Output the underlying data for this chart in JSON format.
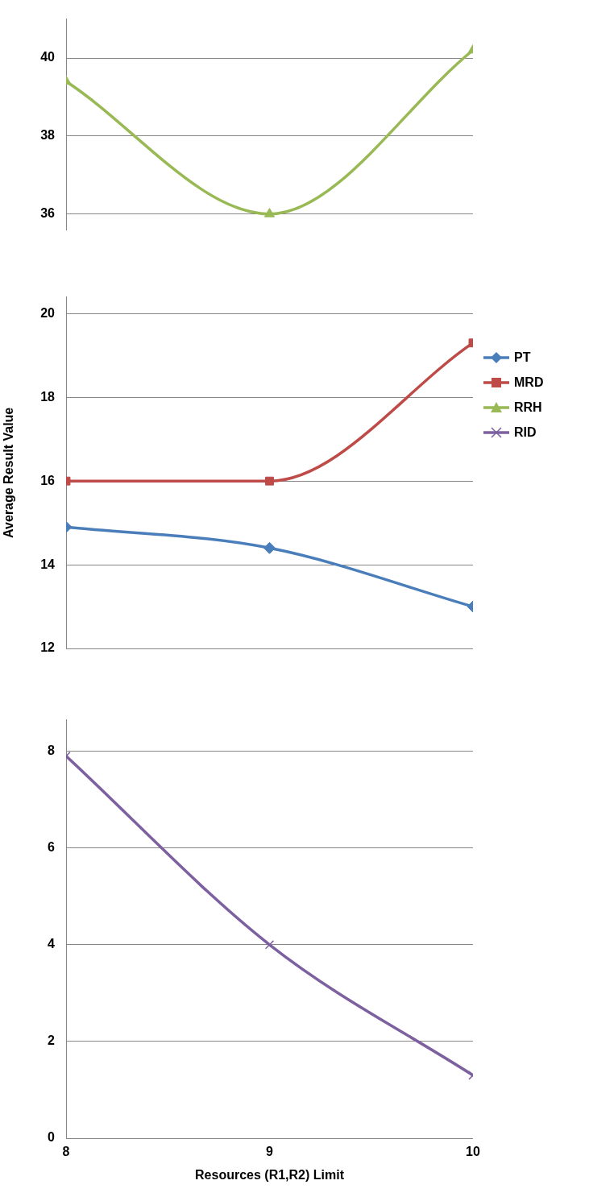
{
  "chart_data": [
    {
      "type": "line",
      "x": [
        8,
        9,
        10
      ],
      "xlim": [
        8,
        10
      ],
      "xticks": [
        8,
        9,
        10
      ],
      "ylim": [
        35.6,
        41
      ],
      "yticks": [
        36,
        38,
        40
      ],
      "grid": "y",
      "tick_labels": "y",
      "series": [
        {
          "name": "RRH",
          "color": "#98b954",
          "marker": "triangle",
          "values": [
            39.4,
            36,
            40.2
          ]
        }
      ]
    },
    {
      "type": "line",
      "x": [
        8,
        9,
        10
      ],
      "xlim": [
        8,
        10
      ],
      "xticks": [
        8,
        9,
        10
      ],
      "ylim": [
        12,
        20.4
      ],
      "yticks": [
        12,
        14,
        16,
        18,
        20
      ],
      "grid": "y",
      "tick_labels": "y",
      "ylabel": "Average Result Value",
      "legend": "right",
      "series": [
        {
          "name": "PT",
          "color": "#4a7ebb",
          "marker": "diamond",
          "values": [
            14.9,
            14.4,
            13
          ]
        },
        {
          "name": "MRD",
          "color": "#be4b48",
          "marker": "square",
          "values": [
            16,
            16,
            19.3
          ]
        }
      ]
    },
    {
      "type": "line",
      "x": [
        8,
        9,
        10
      ],
      "xlim": [
        8,
        10
      ],
      "xticks": [
        8,
        9,
        10
      ],
      "ylim": [
        0,
        8.65
      ],
      "yticks": [
        0,
        2,
        4,
        6,
        8
      ],
      "grid": "y",
      "xlabel": "Resources (R1,R2) Limit",
      "series": [
        {
          "name": "RID",
          "color": "#7d60a0",
          "marker": "cross",
          "values": [
            7.9,
            4,
            1.3
          ]
        }
      ]
    }
  ]
}
